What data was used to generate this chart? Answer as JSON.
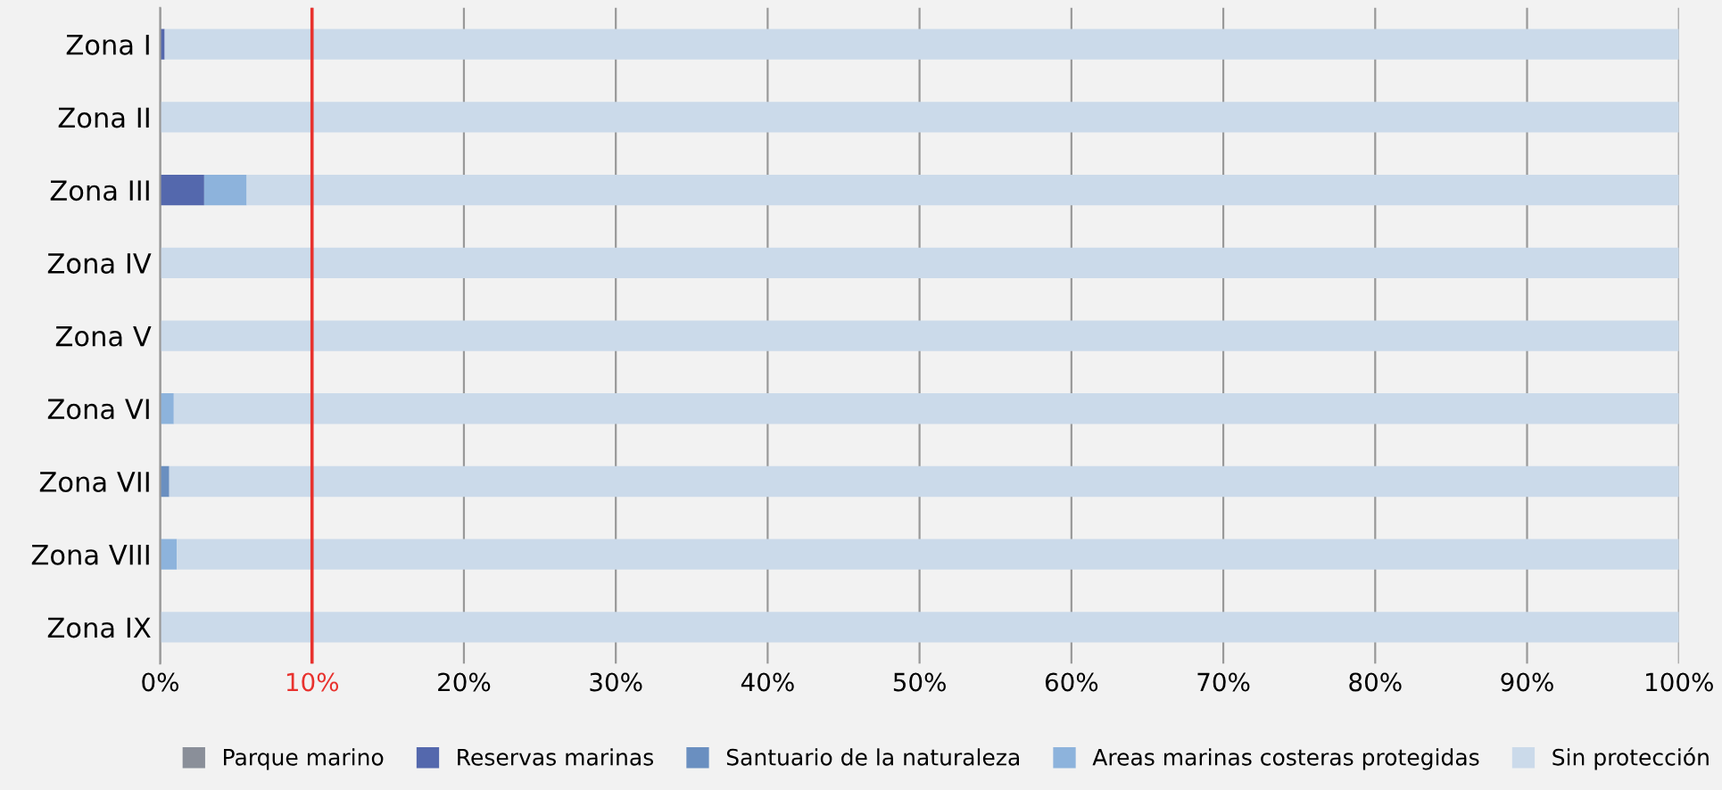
{
  "chart_data": {
    "type": "bar",
    "orientation": "horizontal",
    "stacked": true,
    "categories": [
      "Zona I",
      "Zona II",
      "Zona III",
      "Zona IV",
      "Zona V",
      "Zona VI",
      "Zona VII",
      "Zona VIII",
      "Zona IX"
    ],
    "series": [
      {
        "name": "Parque marino",
        "color": "#8a8f99",
        "values": [
          0,
          0,
          0,
          0,
          0,
          0,
          0,
          0,
          0
        ]
      },
      {
        "name": "Reservas marinas",
        "color": "#5468ad",
        "values": [
          0.3,
          0,
          2.9,
          0,
          0,
          0,
          0,
          0,
          0
        ]
      },
      {
        "name": "Santuario de la naturaleza",
        "color": "#6a8fc0",
        "values": [
          0,
          0,
          0,
          0,
          0,
          0,
          0.6,
          0,
          0
        ]
      },
      {
        "name": "Areas marinas costeras protegidas",
        "color": "#8db3dc",
        "values": [
          0,
          0,
          2.8,
          0,
          0,
          0.9,
          0,
          1.1,
          0
        ]
      },
      {
        "name": "Sin protección",
        "color": "#cbdaea",
        "values": [
          99.7,
          100,
          94.3,
          100,
          100,
          99.1,
          99.4,
          98.9,
          100
        ]
      }
    ],
    "xlim": [
      0,
      100
    ],
    "xticks": [
      {
        "value": 0,
        "label": "0%"
      },
      {
        "value": 10,
        "label": "10%"
      },
      {
        "value": 20,
        "label": "20%"
      },
      {
        "value": 30,
        "label": "30%"
      },
      {
        "value": 40,
        "label": "40%"
      },
      {
        "value": 50,
        "label": "50%"
      },
      {
        "value": 60,
        "label": "60%"
      },
      {
        "value": 70,
        "label": "70%"
      },
      {
        "value": 80,
        "label": "80%"
      },
      {
        "value": 90,
        "label": "90%"
      },
      {
        "value": 100,
        "label": "100%"
      }
    ],
    "ref_lines": [
      {
        "axis": "x",
        "value": 10,
        "label": null,
        "color": "#e8322e"
      }
    ],
    "grid": "x",
    "legend": "bottom"
  }
}
